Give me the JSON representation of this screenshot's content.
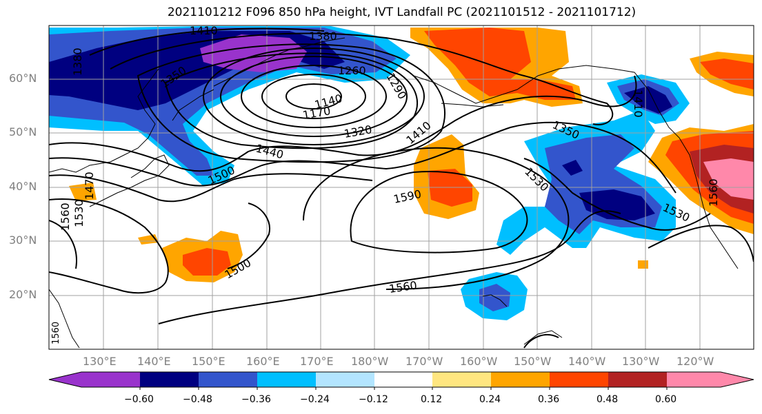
{
  "title": "2021101212 F096 850 hPa height, IVT Landfall PC (2021101512 - 2021101712)",
  "lat_labels": [
    "60°N",
    "50°N",
    "40°N",
    "30°N",
    "20°N"
  ],
  "lon_labels": [
    "130°E",
    "140°E",
    "150°E",
    "160°E",
    "170°E",
    "180°W",
    "170°W",
    "160°W",
    "150°W",
    "140°W",
    "130°W",
    "120°W"
  ],
  "contour_labels": [
    "1410",
    "1380",
    "1380",
    "1350",
    "1260",
    "1290",
    "1140",
    "1170",
    "1320",
    "1410",
    "1350",
    "1440",
    "1500",
    "1590",
    "1530",
    "1530",
    "1560",
    "1500",
    "1560",
    "1560",
    "1530",
    "1470",
    "1560",
    "1410"
  ],
  "colorbar": {
    "ticks": [
      "−0.60",
      "−0.48",
      "−0.36",
      "−0.24",
      "−0.12",
      "0.12",
      "0.24",
      "0.36",
      "0.48",
      "0.60"
    ],
    "colors": [
      "#9933cc",
      "#000080",
      "#3355cc",
      "#00bfff",
      "#b3e5ff",
      "#ffffff",
      "#ffe680",
      "#ffa500",
      "#ff4500",
      "#b22222",
      "#ff88aa"
    ]
  }
}
